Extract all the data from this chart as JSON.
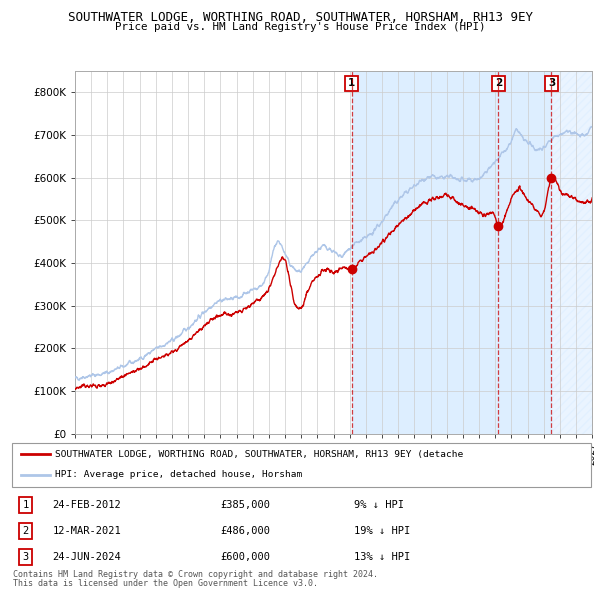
{
  "title": "SOUTHWATER LODGE, WORTHING ROAD, SOUTHWATER, HORSHAM, RH13 9EY",
  "subtitle": "Price paid vs. HM Land Registry's House Price Index (HPI)",
  "hpi_color": "#aec6e8",
  "property_color": "#cc0000",
  "background_color": "#ffffff",
  "plot_bg_color": "#ffffff",
  "shaded_region_color": "#ddeeff",
  "grid_color": "#cccccc",
  "x_start_year": 1995,
  "x_end_year": 2027,
  "ylim": [
    0,
    850000
  ],
  "yticks": [
    0,
    100000,
    200000,
    300000,
    400000,
    500000,
    600000,
    700000,
    800000
  ],
  "ytick_labels": [
    "£0",
    "£100K",
    "£200K",
    "£300K",
    "£400K",
    "£500K",
    "£600K",
    "£700K",
    "£800K"
  ],
  "sales": [
    {
      "num": 1,
      "date": "24-FEB-2012",
      "year": 2012.12,
      "price": 385000,
      "pct": "9%",
      "direction": "↓"
    },
    {
      "num": 2,
      "date": "12-MAR-2021",
      "year": 2021.19,
      "price": 486000,
      "pct": "19%",
      "direction": "↓"
    },
    {
      "num": 3,
      "date": "24-JUN-2024",
      "year": 2024.48,
      "price": 600000,
      "pct": "13%",
      "direction": "↓"
    }
  ],
  "legend_property_label": "SOUTHWATER LODGE, WORTHING ROAD, SOUTHWATER, HORSHAM, RH13 9EY (detache",
  "legend_hpi_label": "HPI: Average price, detached house, Horsham",
  "footnote1": "Contains HM Land Registry data © Crown copyright and database right 2024.",
  "footnote2": "This data is licensed under the Open Government Licence v3.0."
}
